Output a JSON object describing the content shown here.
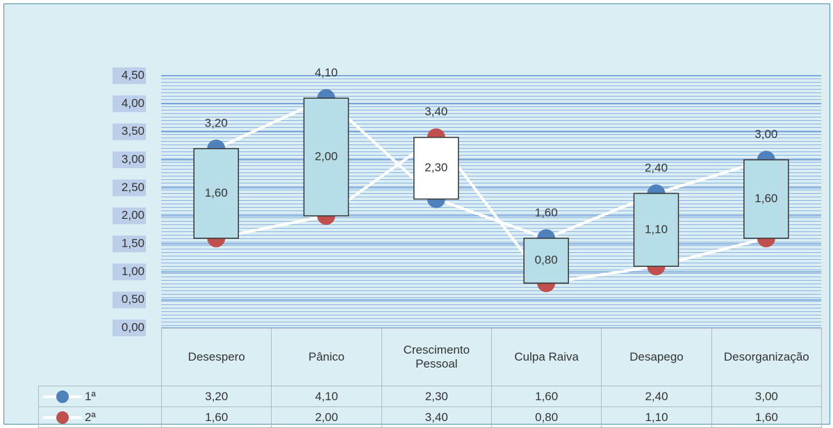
{
  "chart_data": {
    "type": "line",
    "categories": [
      "Desespero",
      "Pânico",
      "Crescimento Pessoal",
      "Culpa Raiva",
      "Desapego",
      "Desorganização"
    ],
    "series": [
      {
        "name": "1ª",
        "color": "#4f81bd",
        "values": [
          3.2,
          4.1,
          2.3,
          1.6,
          2.4,
          3.0
        ],
        "value_labels": [
          "3,20",
          "4,10",
          "2,30",
          "1,60",
          "2,40",
          "3,00"
        ]
      },
      {
        "name": "2ª",
        "color": "#c0504d",
        "values": [
          1.6,
          2.0,
          3.4,
          0.8,
          1.1,
          1.6
        ],
        "value_labels": [
          "1,60",
          "2,00",
          "3,40",
          "0,80",
          "1,10",
          "1,60"
        ]
      }
    ],
    "ylim": [
      0,
      4.5
    ],
    "yticks": [
      {
        "value": 0,
        "label": "0,00"
      },
      {
        "value": 0.5,
        "label": "0,50"
      },
      {
        "value": 1,
        "label": "1,00"
      },
      {
        "value": 1.5,
        "label": "1,50"
      },
      {
        "value": 2,
        "label": "2,00"
      },
      {
        "value": 2.5,
        "label": "2,50"
      },
      {
        "value": 3,
        "label": "3,00"
      },
      {
        "value": 3.5,
        "label": "3,50"
      },
      {
        "value": 4,
        "label": "4,00"
      },
      {
        "value": 4.5,
        "label": "4,50"
      }
    ],
    "grid": true,
    "up_down_bars": true,
    "data_table": true
  }
}
